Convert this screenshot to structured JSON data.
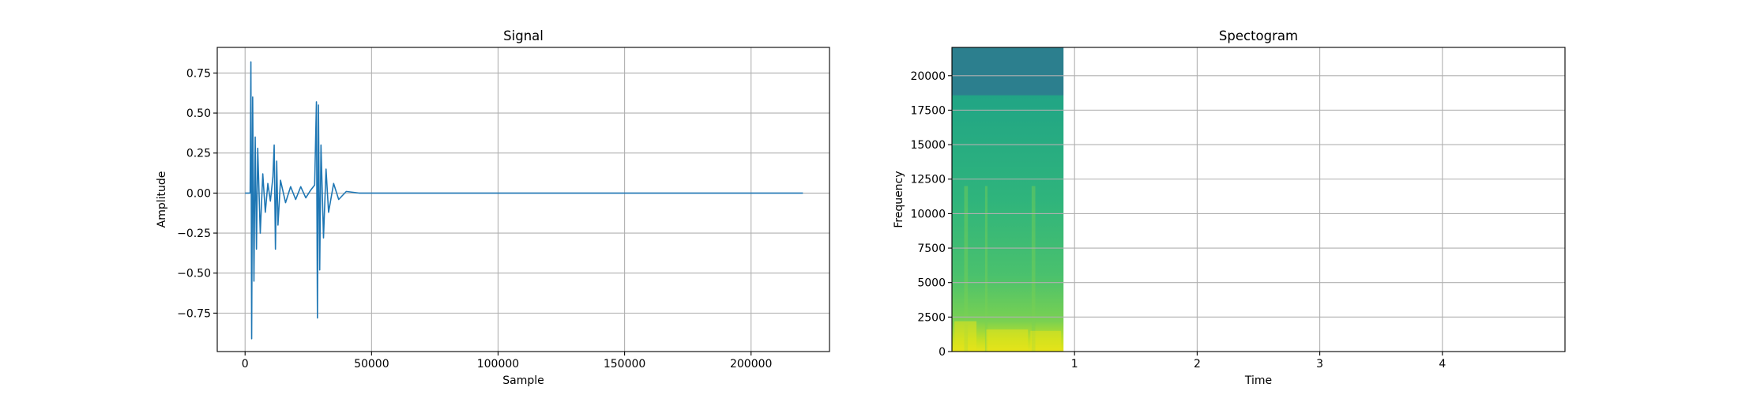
{
  "chart_data": [
    {
      "type": "line",
      "title": "Signal",
      "xlabel": "Sample",
      "ylabel": "Amplitude",
      "xlim": [
        -11000,
        231000
      ],
      "ylim": [
        -0.99,
        0.91
      ],
      "xticks": [
        0,
        50000,
        100000,
        150000,
        200000
      ],
      "xtick_labels": [
        "0",
        "50000",
        "100000",
        "150000",
        "200000"
      ],
      "yticks": [
        -0.75,
        -0.5,
        -0.25,
        0.0,
        0.25,
        0.5,
        0.75
      ],
      "ytick_labels": [
        "−0.75",
        "−0.50",
        "−0.25",
        "0.00",
        "0.25",
        "0.50",
        "0.75"
      ],
      "grid": true,
      "line_color": "#1f77b4",
      "series": [
        {
          "x": [
            0,
            2000,
            2300,
            2600,
            3000,
            3500,
            4000,
            4500,
            5000,
            6000,
            7000,
            8000,
            9000,
            10000,
            11000,
            11500,
            12000,
            12500,
            13000,
            14000,
            16000,
            18000,
            20000,
            22000,
            24000,
            26000,
            27500,
            28200,
            28600,
            29000,
            29500,
            30000,
            31000,
            32000,
            33000,
            35000,
            37000,
            40000,
            45000,
            220500
          ],
          "y": [
            0.0,
            0.0,
            0.82,
            -0.91,
            0.6,
            -0.55,
            0.35,
            -0.35,
            0.28,
            -0.25,
            0.12,
            -0.12,
            0.06,
            -0.05,
            0.1,
            0.3,
            -0.35,
            0.2,
            -0.2,
            0.08,
            -0.06,
            0.04,
            -0.04,
            0.04,
            -0.03,
            0.02,
            0.05,
            0.57,
            -0.78,
            0.55,
            -0.48,
            0.3,
            -0.28,
            0.15,
            -0.12,
            0.06,
            -0.04,
            0.01,
            0.0,
            0.0
          ]
        }
      ]
    },
    {
      "type": "heatmap",
      "title": "Spectogram",
      "xlabel": "Time",
      "ylabel": "Frequency",
      "xlim": [
        0.0,
        5.0
      ],
      "ylim": [
        0,
        22050
      ],
      "xticks": [
        1,
        2,
        3,
        4
      ],
      "xtick_labels": [
        "1",
        "2",
        "3",
        "4"
      ],
      "yticks": [
        0,
        2500,
        5000,
        7500,
        10000,
        12500,
        15000,
        17500,
        20000
      ],
      "ytick_labels": [
        "0",
        "2500",
        "5000",
        "7500",
        "10000",
        "12500",
        "15000",
        "17500",
        "20000"
      ],
      "grid": true,
      "data_extent_time": [
        0.0,
        0.91
      ],
      "colors": {
        "high_band": "#2c7f8e",
        "mid_band": "#21a585",
        "low_band": "#7ad151",
        "peak": "#e6e419"
      }
    }
  ]
}
